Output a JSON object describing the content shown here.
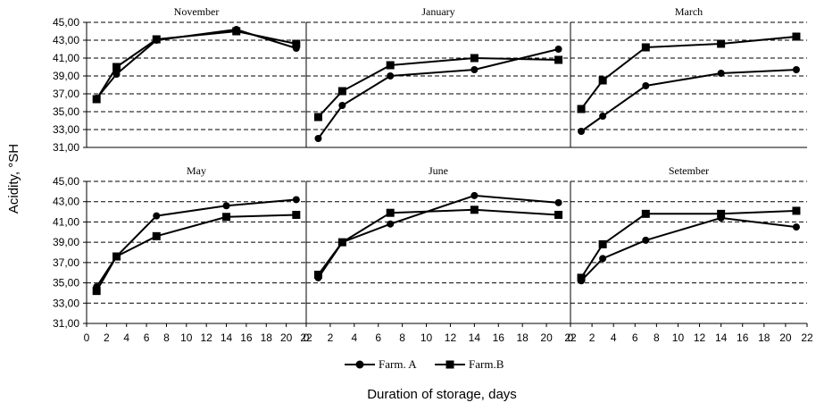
{
  "y_axis_label": "Acidity, °SH",
  "x_axis_label": "Duration of storage, days",
  "legend": [
    {
      "label": "Farm. A",
      "marker": "circle"
    },
    {
      "label": "Farm.B",
      "marker": "square"
    }
  ],
  "colors": {
    "line": "#000000",
    "grid": "#000000",
    "background": "#ffffff"
  },
  "chart_data": [
    {
      "type": "line",
      "title": "November",
      "ylim": [
        31,
        45
      ],
      "xlim": [
        0,
        22
      ],
      "series": [
        {
          "name": "Farm. A",
          "x": [
            1,
            3,
            7,
            15,
            21
          ],
          "y": [
            36.5,
            39.2,
            43.0,
            44.2,
            42.1
          ]
        },
        {
          "name": "Farm.B",
          "x": [
            1,
            3,
            7,
            15,
            21
          ],
          "y": [
            36.4,
            40.0,
            43.1,
            44.0,
            42.6
          ]
        }
      ]
    },
    {
      "type": "line",
      "title": "January",
      "ylim": [
        31,
        45
      ],
      "xlim": [
        0,
        22
      ],
      "series": [
        {
          "name": "Farm. A",
          "x": [
            1,
            3,
            7,
            14,
            21
          ],
          "y": [
            32.0,
            35.7,
            39.0,
            39.7,
            42.0
          ]
        },
        {
          "name": "Farm.B",
          "x": [
            1,
            3,
            7,
            14,
            21
          ],
          "y": [
            34.4,
            37.3,
            40.2,
            41.0,
            40.8
          ]
        }
      ]
    },
    {
      "type": "line",
      "title": "March",
      "ylim": [
        31,
        45
      ],
      "xlim": [
        0,
        22
      ],
      "series": [
        {
          "name": "Farm. A",
          "x": [
            1,
            3,
            7,
            14,
            21
          ],
          "y": [
            32.8,
            34.5,
            37.9,
            39.3,
            39.7
          ]
        },
        {
          "name": "Farm.B",
          "x": [
            1,
            3,
            7,
            14,
            21
          ],
          "y": [
            35.3,
            38.5,
            42.2,
            42.6,
            43.4
          ]
        }
      ]
    },
    {
      "type": "line",
      "title": "May",
      "ylim": [
        31,
        45
      ],
      "xlim": [
        0,
        22
      ],
      "series": [
        {
          "name": "Farm. A",
          "x": [
            1,
            3,
            7,
            14,
            21
          ],
          "y": [
            34.6,
            37.6,
            41.6,
            42.6,
            43.2
          ]
        },
        {
          "name": "Farm.B",
          "x": [
            1,
            3,
            7,
            14,
            21
          ],
          "y": [
            34.2,
            37.6,
            39.6,
            41.5,
            41.7
          ]
        }
      ]
    },
    {
      "type": "line",
      "title": "June",
      "ylim": [
        31,
        45
      ],
      "xlim": [
        0,
        22
      ],
      "series": [
        {
          "name": "Farm. A",
          "x": [
            1,
            3,
            7,
            14,
            21
          ],
          "y": [
            35.5,
            39.0,
            40.8,
            43.6,
            42.9
          ]
        },
        {
          "name": "Farm.B",
          "x": [
            1,
            3,
            7,
            14,
            21
          ],
          "y": [
            35.8,
            39.0,
            41.9,
            42.2,
            41.7
          ]
        }
      ]
    },
    {
      "type": "line",
      "title": "Setember",
      "ylim": [
        31,
        45
      ],
      "xlim": [
        0,
        22
      ],
      "series": [
        {
          "name": "Farm. A",
          "x": [
            1,
            3,
            7,
            14,
            21
          ],
          "y": [
            35.2,
            37.4,
            39.2,
            41.4,
            40.5
          ]
        },
        {
          "name": "Farm.B",
          "x": [
            1,
            3,
            7,
            14,
            21
          ],
          "y": [
            35.5,
            38.8,
            41.8,
            41.8,
            42.1
          ]
        }
      ]
    }
  ],
  "y_ticks": [
    "31,00",
    "33,00",
    "35,00",
    "37,00",
    "39,00",
    "41,00",
    "43,00",
    "45,00"
  ],
  "x_ticks": [
    "0",
    "2",
    "4",
    "6",
    "8",
    "10",
    "12",
    "14",
    "16",
    "18",
    "20",
    "22"
  ],
  "x_ticks_right": [
    "0",
    "2",
    "4",
    "6",
    "8",
    "10",
    "12",
    "14",
    "16",
    "18",
    "20",
    "22"
  ],
  "y_tick_values": [
    31,
    33,
    35,
    37,
    39,
    41,
    43,
    45
  ],
  "x_tick_values": [
    0,
    2,
    4,
    6,
    8,
    10,
    12,
    14,
    16,
    18,
    20,
    22
  ]
}
